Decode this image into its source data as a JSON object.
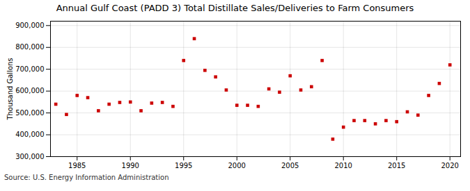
{
  "chart_data": {
    "type": "scatter",
    "title": "Annual Gulf Coast (PADD 3) Total Distillate Sales/Deliveries to Farm Consumers",
    "ylabel": "Thousand Gallons",
    "source": "Source: U.S. Energy Information Administration",
    "color": "#cc0000",
    "marker": "square",
    "x": [
      1983,
      1984,
      1985,
      1986,
      1987,
      1988,
      1989,
      1990,
      1991,
      1992,
      1993,
      1994,
      1995,
      1996,
      1997,
      1998,
      1999,
      2000,
      2001,
      2002,
      2003,
      2004,
      2005,
      2006,
      2007,
      2008,
      2009,
      2010,
      2011,
      2012,
      2013,
      2014,
      2015,
      2016,
      2017,
      2018,
      2019,
      2020
    ],
    "values": [
      540000,
      493000,
      580000,
      570000,
      510000,
      540000,
      548000,
      550000,
      510000,
      545000,
      548000,
      530000,
      740000,
      840000,
      695000,
      665000,
      605000,
      535000,
      535000,
      530000,
      610000,
      595000,
      670000,
      605000,
      620000,
      740000,
      380000,
      435000,
      465000,
      465000,
      450000,
      465000,
      460000,
      505000,
      490000,
      580000,
      635000,
      720000
    ],
    "xlim": [
      1982.5,
      2021
    ],
    "xticks": [
      1985,
      1990,
      1995,
      2000,
      2005,
      2010,
      2015,
      2020
    ],
    "ylim": [
      300000,
      920000
    ],
    "yticks": [
      {
        "value": 300000,
        "label": "300,000"
      },
      {
        "value": 400000,
        "label": "400,000"
      },
      {
        "value": 500000,
        "label": "500,000"
      },
      {
        "value": 600000,
        "label": "600,000"
      },
      {
        "value": 700000,
        "label": "700,000"
      },
      {
        "value": 800000,
        "label": "800,000"
      },
      {
        "value": 900000,
        "label": "900,000"
      }
    ],
    "grid": true
  }
}
